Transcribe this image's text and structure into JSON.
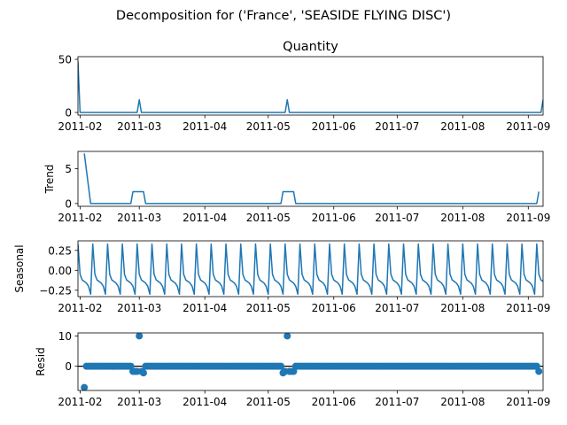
{
  "figure": {
    "title": "Decomposition for ('France', 'SEASIDE FLYING DISC')"
  },
  "colors": {
    "series": "#1f77b4",
    "axis": "#000000",
    "zero_line": "#000000"
  },
  "x_axis": {
    "start": "2011-01-31",
    "end": "2011-09-08",
    "ticks": [
      "2011-02",
      "2011-03",
      "2011-04",
      "2011-05",
      "2011-06",
      "2011-07",
      "2011-08",
      "2011-09"
    ],
    "tick_dates": [
      "2011-02-01",
      "2011-03-01",
      "2011-04-01",
      "2011-05-01",
      "2011-06-01",
      "2011-07-01",
      "2011-08-01",
      "2011-09-01"
    ]
  },
  "chart_data": [
    {
      "id": "observed",
      "type": "line",
      "title": "Quantity",
      "ylabel": "",
      "ylim": [
        -2.5,
        52.5
      ],
      "yticks": [
        {
          "v": 0,
          "label": "0"
        },
        {
          "v": 50,
          "label": "50"
        }
      ],
      "x": [
        "2011-01-31",
        "2011-02-01",
        "2011-02-28",
        "2011-03-01",
        "2011-03-02",
        "2011-05-09",
        "2011-05-10",
        "2011-05-11",
        "2011-09-07",
        "2011-09-08"
      ],
      "values": [
        48,
        0,
        0,
        12,
        0,
        0,
        12,
        0,
        0,
        12
      ]
    },
    {
      "id": "trend",
      "type": "line",
      "title": "",
      "ylabel": "Trend",
      "ylim": [
        -0.4,
        7.5
      ],
      "yticks": [
        {
          "v": 0,
          "label": "0"
        },
        {
          "v": 5,
          "label": "5"
        }
      ],
      "x": [
        "2011-02-03",
        "2011-02-06",
        "2011-02-25",
        "2011-02-26",
        "2011-03-03",
        "2011-03-04",
        "2011-05-07",
        "2011-05-08",
        "2011-05-13",
        "2011-05-14",
        "2011-09-05",
        "2011-09-06"
      ],
      "values": [
        7.2,
        0,
        0,
        1.71,
        1.71,
        0,
        0,
        1.71,
        1.71,
        0,
        0,
        1.71
      ]
    },
    {
      "id": "seasonal",
      "type": "line",
      "title": "",
      "ylabel": "Seasonal",
      "ylim": [
        -0.33,
        0.37
      ],
      "yticks": [
        {
          "v": 0.25,
          "label": "0.25"
        },
        {
          "v": 0.0,
          "label": "0.00"
        },
        {
          "v": -0.25,
          "label": "−0.25"
        }
      ],
      "period_days": 7,
      "start": "2011-01-31",
      "end": "2011-09-08",
      "pattern": [
        0.33,
        -0.05,
        -0.12,
        -0.14,
        -0.16,
        -0.2,
        -0.3
      ]
    },
    {
      "id": "resid",
      "type": "scatter",
      "title": "",
      "ylabel": "Resid",
      "ylim": [
        -8,
        11
      ],
      "yticks": [
        {
          "v": 10,
          "label": "10"
        },
        {
          "v": 0,
          "label": "0"
        }
      ],
      "zero_line": true,
      "start": "2011-02-03",
      "end": "2011-09-06",
      "default": 0,
      "overrides": [
        {
          "x": "2011-02-03",
          "y": -7.0
        },
        {
          "x": "2011-02-26",
          "y": -1.71
        },
        {
          "x": "2011-02-27",
          "y": -1.71
        },
        {
          "x": "2011-02-28",
          "y": -1.71
        },
        {
          "x": "2011-03-01",
          "y": 10.0
        },
        {
          "x": "2011-03-02",
          "y": -1.71
        },
        {
          "x": "2011-03-03",
          "y": -2.2
        },
        {
          "x": "2011-05-08",
          "y": -2.2
        },
        {
          "x": "2011-05-09",
          "y": -1.71
        },
        {
          "x": "2011-05-10",
          "y": 10.0
        },
        {
          "x": "2011-05-11",
          "y": -1.71
        },
        {
          "x": "2011-05-12",
          "y": -1.71
        },
        {
          "x": "2011-05-13",
          "y": -1.71
        },
        {
          "x": "2011-09-06",
          "y": -1.71
        }
      ]
    }
  ]
}
